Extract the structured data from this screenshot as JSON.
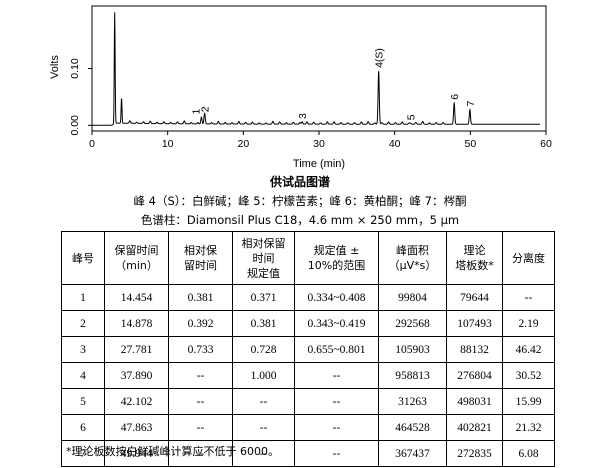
{
  "chart_data": {
    "type": "line",
    "xlabel": "Time (min)",
    "ylabel": "Volts",
    "xlim": [
      0,
      60
    ],
    "ylim": [
      -0.01,
      0.21
    ],
    "xticks": [
      "0",
      "10",
      "20",
      "30",
      "40",
      "50",
      "60"
    ],
    "yticks": [
      "0.00",
      "0.10"
    ],
    "peaks": [
      {
        "label": "1",
        "x": 14.454,
        "y": 0.012
      },
      {
        "label": "2",
        "x": 14.878,
        "y": 0.016
      },
      {
        "label": "3",
        "x": 27.781,
        "y": 0.004
      },
      {
        "label": "4(S)",
        "x": 37.89,
        "y": 0.094
      },
      {
        "label": "5",
        "x": 42.102,
        "y": 0.002
      },
      {
        "label": "6",
        "x": 47.863,
        "y": 0.038
      },
      {
        "label": "7",
        "x": 49.944,
        "y": 0.026
      }
    ],
    "unlabeled_peaks": [
      {
        "x": 3.0,
        "y": 0.195
      },
      {
        "x": 3.9,
        "y": 0.045
      }
    ]
  },
  "figure_title": "供试品图谱",
  "peak_note": "峰 4（S）：白鲜碱；峰 5：柠檬苦素；峰 6：黄柏酮；峰 7：梣酮",
  "column_note": "色谱柱：Diamonsil Plus C18，4.6 mm × 250 mm，5 μm",
  "table": {
    "headers": [
      "峰号",
      "保留时间\n（min）",
      "相对保\n留时间",
      "相对保留\n时间\n规定值",
      "规定值 ±\n10%的范围",
      "峰面积\n（μV*s）",
      "理论\n塔板数*",
      "分离度"
    ],
    "rows": [
      [
        "1",
        "14.454",
        "0.381",
        "0.371",
        "0.334~0.408",
        "99804",
        "79644",
        "--"
      ],
      [
        "2",
        "14.878",
        "0.392",
        "0.381",
        "0.343~0.419",
        "292568",
        "107493",
        "2.19"
      ],
      [
        "3",
        "27.781",
        "0.733",
        "0.728",
        "0.655~0.801",
        "105903",
        "88132",
        "46.42"
      ],
      [
        "4",
        "37.890",
        "--",
        "1.000",
        "--",
        "958813",
        "276804",
        "30.52"
      ],
      [
        "5",
        "42.102",
        "--",
        "--",
        "--",
        "31263",
        "498031",
        "15.99"
      ],
      [
        "6",
        "47.863",
        "--",
        "--",
        "--",
        "464528",
        "402821",
        "21.32"
      ],
      [
        "7",
        "49.944",
        "--",
        "--",
        "--",
        "367437",
        "272835",
        "6.08"
      ]
    ]
  },
  "footnote": "*理论板数按白鲜碱峰计算应不低于 6000。"
}
